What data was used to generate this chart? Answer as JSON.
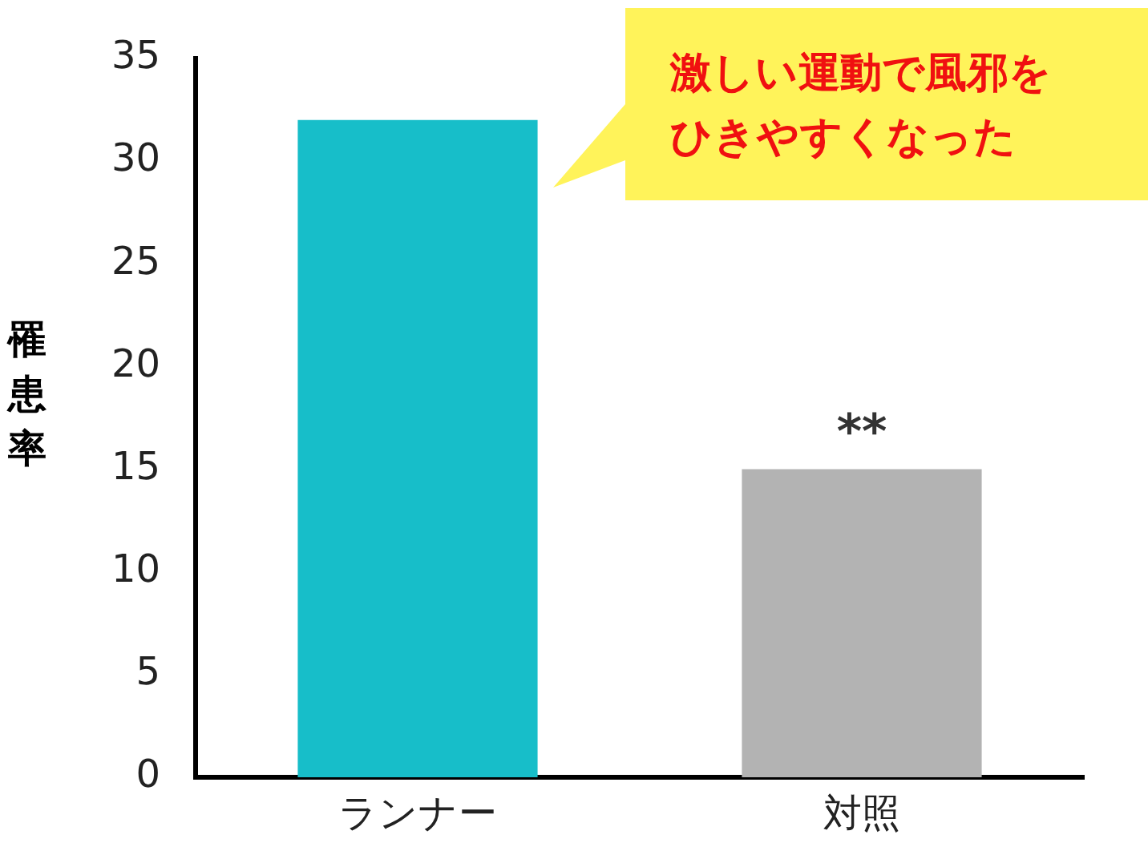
{
  "chart_data": {
    "type": "bar",
    "ylabel": "罹患率",
    "categories": [
      "ランナー",
      "対照"
    ],
    "values": [
      32,
      15
    ],
    "colors": [
      "#17bec9",
      "#b3b3b3"
    ],
    "ylim": [
      0,
      35
    ],
    "yticks": [
      0,
      5,
      10,
      15,
      20,
      25,
      30,
      35
    ],
    "grid": false,
    "legend": false,
    "annotations": [
      {
        "text": "**",
        "x": "対照",
        "y": 15
      },
      "激しい運動で風邪をひきやすくなった"
    ]
  }
}
